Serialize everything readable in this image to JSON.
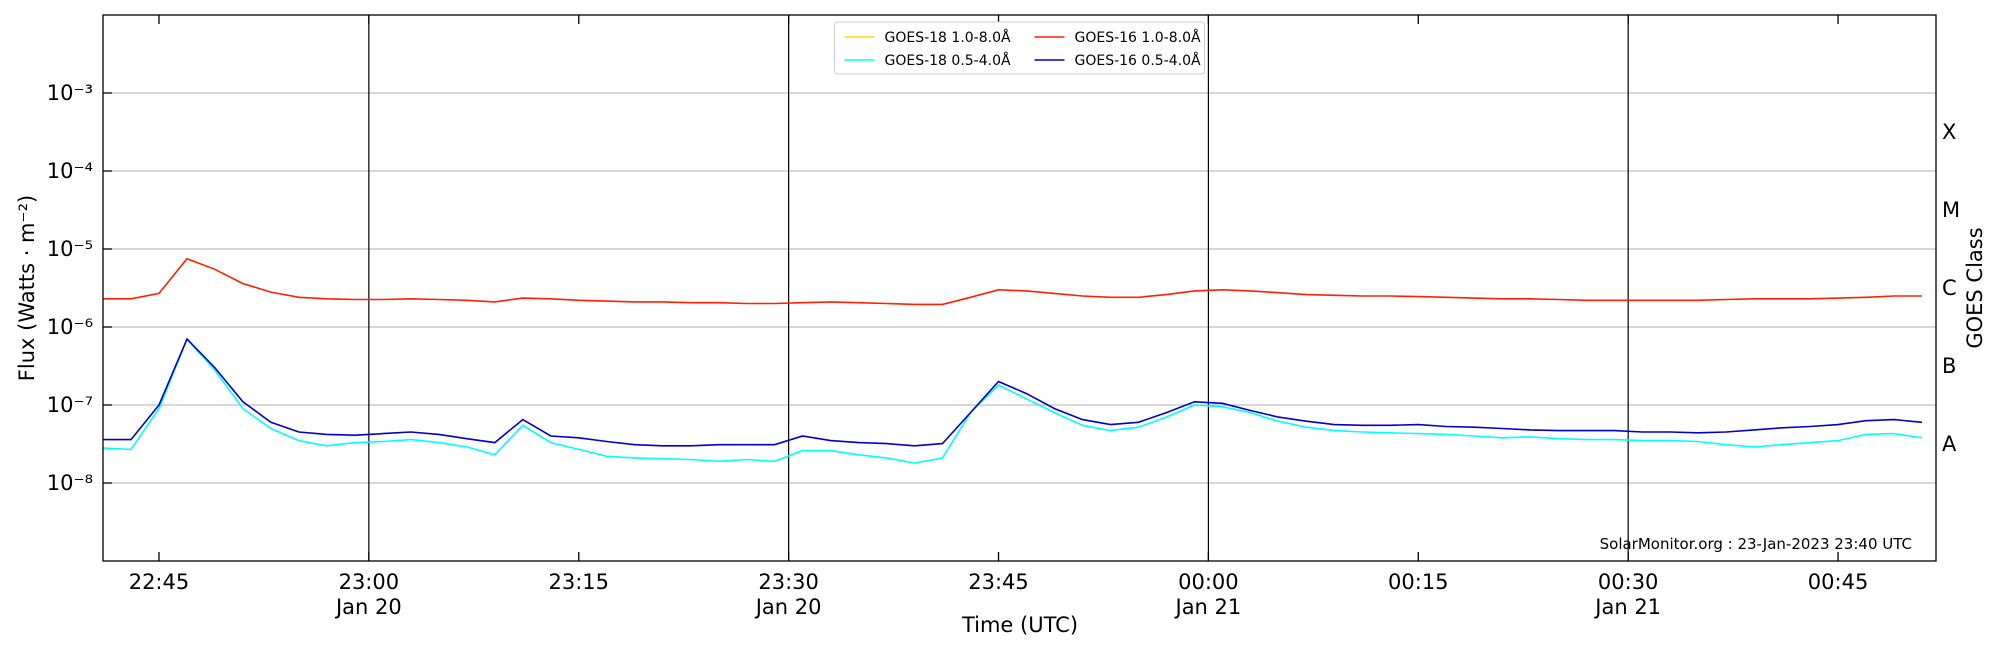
{
  "chart_data": {
    "type": "line",
    "xlabel": "Time (UTC)",
    "ylabel": "Flux (Watts · m⁻²)",
    "y2label": "GOES Class",
    "annotation": "SolarMonitor.org : 23-Jan-2023 23:40 UTC",
    "log_y": true,
    "grid": true,
    "legend": "upper center",
    "xlim": [
      "Jan 20 22:41",
      "Jan 21 00:52"
    ],
    "ylim": [
      1e-09,
      0.01
    ],
    "y2lim": [
      1e-09,
      0.01
    ],
    "xticks": [
      {
        "value": "Jan 20 22:45",
        "label": "22:45"
      },
      {
        "value": "Jan 20 23:00",
        "label": "23:00\nJan 20"
      },
      {
        "value": "Jan 20 23:15",
        "label": "23:15"
      },
      {
        "value": "Jan 20 23:30",
        "label": "23:30\nJan 20"
      },
      {
        "value": "Jan 20 23:45",
        "label": "23:45"
      },
      {
        "value": "Jan 21 00:00",
        "label": "00:00\nJan 21"
      },
      {
        "value": "Jan 21 00:15",
        "label": "00:15"
      },
      {
        "value": "Jan 21 00:30",
        "label": "00:30\nJan 21"
      },
      {
        "value": "Jan 21 00:45",
        "label": "00:45"
      }
    ],
    "vlines": [
      "Jan 20 23:00",
      "Jan 20 23:30",
      "Jan 21 00:00",
      "Jan 21 00:30"
    ],
    "yticks": [
      {
        "value": 1e-08,
        "label": "10⁻⁸"
      },
      {
        "value": 1e-07,
        "label": "10⁻⁷"
      },
      {
        "value": 1e-06,
        "label": "10⁻⁶"
      },
      {
        "value": 1e-05,
        "label": "10⁻⁵"
      },
      {
        "value": 0.0001,
        "label": "10⁻⁴"
      },
      {
        "value": 0.001,
        "label": "10⁻³"
      }
    ],
    "y2ticks": [
      {
        "value": 3.162e-08,
        "label": "A"
      },
      {
        "value": 3.162e-07,
        "label": "B"
      },
      {
        "value": 3.162e-06,
        "label": "C"
      },
      {
        "value": 3.162e-05,
        "label": "M"
      },
      {
        "value": 0.0003162,
        "label": "X"
      }
    ],
    "x": [
      "Jan 20 22:41",
      "Jan 20 22:43",
      "Jan 20 22:45",
      "Jan 20 22:47",
      "Jan 20 22:49",
      "Jan 20 22:51",
      "Jan 20 22:53",
      "Jan 20 22:55",
      "Jan 20 22:57",
      "Jan 20 22:59",
      "Jan 20 23:01",
      "Jan 20 23:03",
      "Jan 20 23:05",
      "Jan 20 23:07",
      "Jan 20 23:09",
      "Jan 20 23:11",
      "Jan 20 23:13",
      "Jan 20 23:15",
      "Jan 20 23:17",
      "Jan 20 23:19",
      "Jan 20 23:21",
      "Jan 20 23:23",
      "Jan 20 23:25",
      "Jan 20 23:27",
      "Jan 20 23:29",
      "Jan 20 23:31",
      "Jan 20 23:33",
      "Jan 20 23:35",
      "Jan 20 23:37",
      "Jan 20 23:39",
      "Jan 20 23:41",
      "Jan 20 23:43",
      "Jan 20 23:45",
      "Jan 20 23:47",
      "Jan 20 23:49",
      "Jan 20 23:51",
      "Jan 20 23:53",
      "Jan 20 23:55",
      "Jan 20 23:57",
      "Jan 20 23:59",
      "Jan 21 00:01",
      "Jan 21 00:03",
      "Jan 21 00:05",
      "Jan 21 00:07",
      "Jan 21 00:09",
      "Jan 21 00:11",
      "Jan 21 00:13",
      "Jan 21 00:15",
      "Jan 21 00:17",
      "Jan 21 00:19",
      "Jan 21 00:21",
      "Jan 21 00:23",
      "Jan 21 00:25",
      "Jan 21 00:27",
      "Jan 21 00:29",
      "Jan 21 00:31",
      "Jan 21 00:33",
      "Jan 21 00:35",
      "Jan 21 00:37",
      "Jan 21 00:39",
      "Jan 21 00:41",
      "Jan 21 00:43",
      "Jan 21 00:45",
      "Jan 21 00:47",
      "Jan 21 00:49",
      "Jan 21 00:51"
    ],
    "series": [
      {
        "name": "GOES-18 1.0-8.0Å",
        "color": "#ffd700",
        "values": [
          null,
          null,
          null,
          null,
          null,
          null,
          null,
          null,
          null,
          null,
          null,
          null,
          null,
          null,
          null,
          null,
          null,
          null,
          null,
          null,
          null,
          null,
          null,
          null,
          null,
          null,
          null,
          null,
          null,
          null,
          null,
          null,
          null,
          null,
          null,
          null,
          null,
          null,
          null,
          null,
          null,
          null,
          null,
          null,
          null,
          null,
          null,
          null,
          null,
          null,
          null,
          null,
          null,
          null,
          null,
          null,
          null,
          null,
          null,
          null,
          null,
          null,
          null,
          null,
          null,
          null
        ]
      },
      {
        "name": "GOES-18 0.5-4.0Å",
        "color": "#00ffff",
        "values": [
          2.8e-08,
          2.7e-08,
          9e-08,
          7e-07,
          2.8e-07,
          9e-08,
          5e-08,
          3.5e-08,
          3e-08,
          3.3e-08,
          3.4e-08,
          3.6e-08,
          3.3e-08,
          2.9e-08,
          2.3e-08,
          5.5e-08,
          3.3e-08,
          2.7e-08,
          2.2e-08,
          2.1e-08,
          2.05e-08,
          2e-08,
          1.9e-08,
          2e-08,
          1.9e-08,
          2.6e-08,
          2.6e-08,
          2.3e-08,
          2.1e-08,
          1.8e-08,
          2.1e-08,
          8e-08,
          1.8e-07,
          1.2e-07,
          8e-08,
          5.5e-08,
          4.7e-08,
          5.2e-08,
          7e-08,
          1e-07,
          9.5e-08,
          8e-08,
          6.2e-08,
          5.2e-08,
          4.7e-08,
          4.5e-08,
          4.4e-08,
          4.3e-08,
          4.2e-08,
          4e-08,
          3.8e-08,
          3.9e-08,
          3.7e-08,
          3.6e-08,
          3.6e-08,
          3.5e-08,
          3.5e-08,
          3.4e-08,
          3.1e-08,
          2.9e-08,
          3.1e-08,
          3.3e-08,
          3.5e-08,
          4.2e-08,
          4.3e-08,
          3.8e-08
        ]
      },
      {
        "name": "GOES-16 1.0-8.0Å",
        "color": "#ff2000",
        "values": [
          2.3e-06,
          2.3e-06,
          2.7e-06,
          7.5e-06,
          5.5e-06,
          3.6e-06,
          2.8e-06,
          2.4e-06,
          2.3e-06,
          2.25e-06,
          2.25e-06,
          2.3e-06,
          2.25e-06,
          2.2e-06,
          2.1e-06,
          2.35e-06,
          2.3e-06,
          2.2e-06,
          2.15e-06,
          2.1e-06,
          2.1e-06,
          2.05e-06,
          2.05e-06,
          2e-06,
          2e-06,
          2.05e-06,
          2.1e-06,
          2.05e-06,
          2e-06,
          1.95e-06,
          1.95e-06,
          2.4e-06,
          3e-06,
          2.9e-06,
          2.7e-06,
          2.5e-06,
          2.4e-06,
          2.4e-06,
          2.6e-06,
          2.9e-06,
          3e-06,
          2.9e-06,
          2.75e-06,
          2.6e-06,
          2.55e-06,
          2.5e-06,
          2.5e-06,
          2.45e-06,
          2.4e-06,
          2.35e-06,
          2.3e-06,
          2.3e-06,
          2.25e-06,
          2.2e-06,
          2.2e-06,
          2.2e-06,
          2.2e-06,
          2.2e-06,
          2.25e-06,
          2.3e-06,
          2.3e-06,
          2.3e-06,
          2.35e-06,
          2.4e-06,
          2.5e-06,
          2.5e-06
        ]
      },
      {
        "name": "GOES-16 0.5-4.0Å",
        "color": "#0000cc",
        "values": [
          3.6e-08,
          3.6e-08,
          1e-07,
          7e-07,
          3e-07,
          1.1e-07,
          6e-08,
          4.5e-08,
          4.2e-08,
          4.1e-08,
          4.3e-08,
          4.5e-08,
          4.2e-08,
          3.7e-08,
          3.3e-08,
          6.5e-08,
          4e-08,
          3.8e-08,
          3.4e-08,
          3.1e-08,
          3e-08,
          3e-08,
          3.1e-08,
          3.1e-08,
          3.1e-08,
          4e-08,
          3.5e-08,
          3.3e-08,
          3.2e-08,
          3e-08,
          3.2e-08,
          8e-08,
          2e-07,
          1.4e-07,
          9e-08,
          6.5e-08,
          5.6e-08,
          6e-08,
          8e-08,
          1.1e-07,
          1.05e-07,
          8.5e-08,
          7e-08,
          6.2e-08,
          5.6e-08,
          5.5e-08,
          5.5e-08,
          5.6e-08,
          5.3e-08,
          5.2e-08,
          5e-08,
          4.8e-08,
          4.7e-08,
          4.7e-08,
          4.7e-08,
          4.5e-08,
          4.5e-08,
          4.4e-08,
          4.5e-08,
          4.8e-08,
          5.1e-08,
          5.3e-08,
          5.6e-08,
          6.3e-08,
          6.5e-08,
          6e-08
        ]
      }
    ]
  }
}
